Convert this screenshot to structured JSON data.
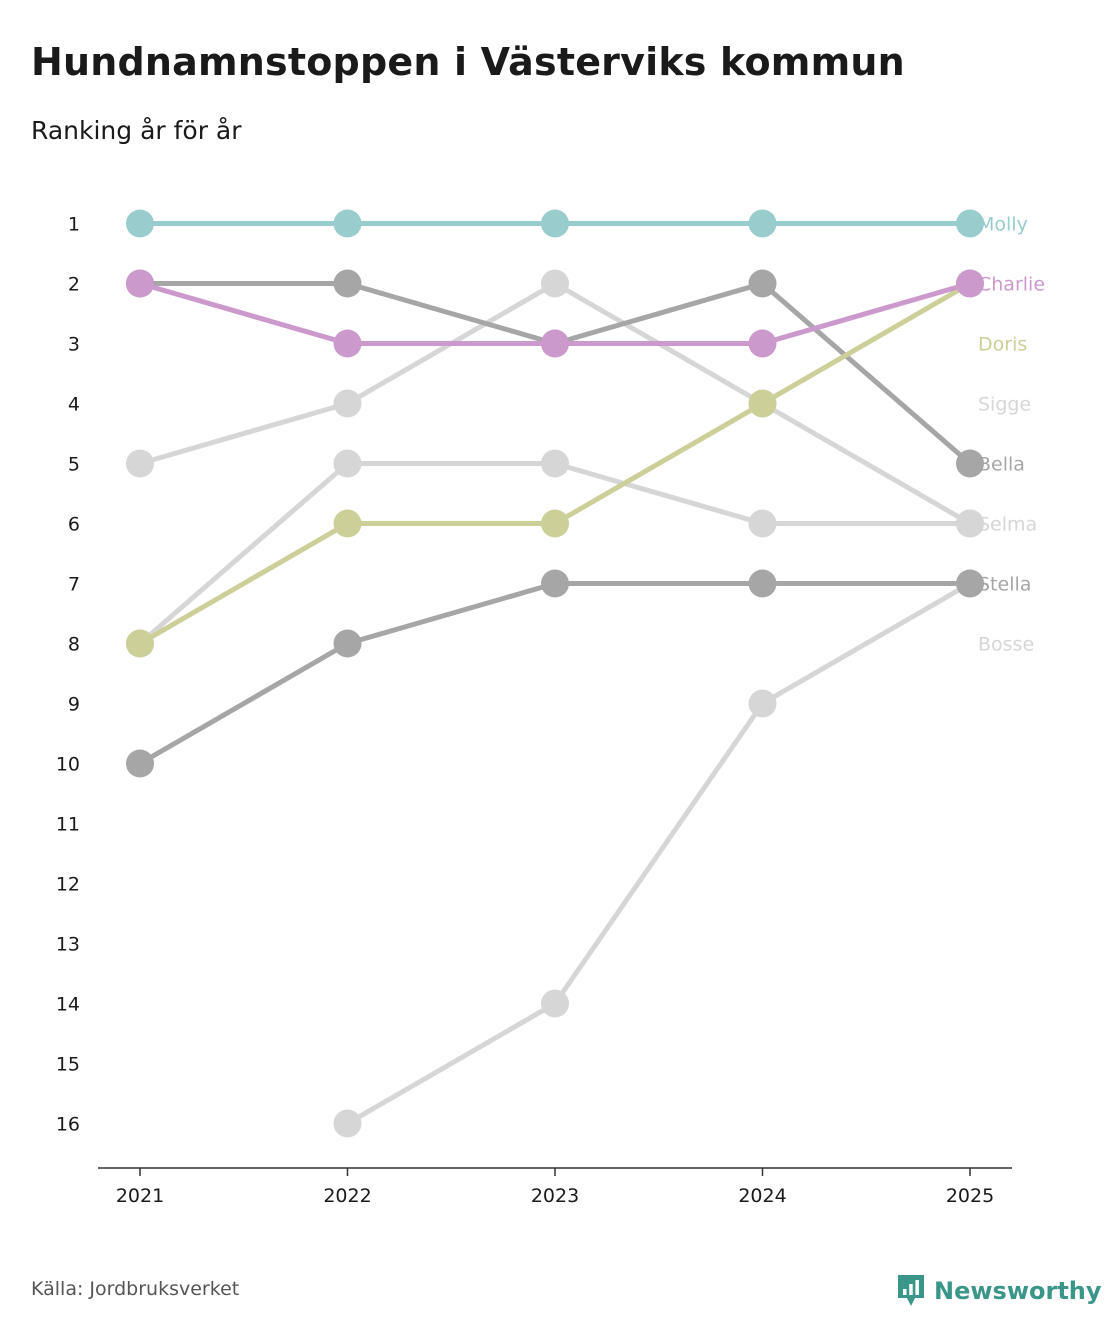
{
  "header": {
    "title": "Hundnamnstoppen i Västerviks kommun",
    "subtitle": "Ranking år för år"
  },
  "footer": {
    "source": "Källa: Jordbruksverket",
    "brand": "Newsworthy"
  },
  "colors": {
    "brand": "#3a9688",
    "axis": "#333333",
    "text": "#1a1a1a"
  },
  "chart_data": {
    "type": "line",
    "title": "Hundnamnstoppen i Västerviks kommun",
    "subtitle": "Ranking år för år",
    "xlabel": "",
    "ylabel": "",
    "x": [
      "2021",
      "2022",
      "2023",
      "2024",
      "2025"
    ],
    "y_ticks": [
      "1",
      "2",
      "3",
      "4",
      "5",
      "6",
      "7",
      "8",
      "9",
      "10",
      "11",
      "12",
      "13",
      "14",
      "15",
      "16"
    ],
    "ylim": [
      1,
      16
    ],
    "y_inverted": true,
    "grid": false,
    "legend": "end-labels",
    "series": [
      {
        "name": "Selma",
        "color": "#d6d6d6",
        "values": [
          5,
          4,
          2,
          4,
          6
        ]
      },
      {
        "name": "Bosse",
        "color": "#d6d6d6",
        "values": [
          8,
          5,
          5,
          6,
          6
        ]
      },
      {
        "name": "Sigge",
        "color": "#d6d6d6",
        "values": [
          null,
          16,
          14,
          9,
          7
        ]
      },
      {
        "name": "Stella",
        "color": "#a6a6a6",
        "values": [
          10,
          8,
          7,
          7,
          7
        ]
      },
      {
        "name": "Bella",
        "color": "#a6a6a6",
        "values": [
          2,
          2,
          3,
          2,
          5
        ]
      },
      {
        "name": "Doris",
        "color": "#cccf98",
        "values": [
          8,
          6,
          6,
          4,
          2
        ]
      },
      {
        "name": "Charlie",
        "color": "#cc99cc",
        "values": [
          2,
          3,
          3,
          3,
          2
        ]
      },
      {
        "name": "Molly",
        "color": "#99cccc",
        "values": [
          1,
          1,
          1,
          1,
          1
        ]
      }
    ],
    "end_labels": [
      {
        "name": "Molly",
        "color": "#99cccc",
        "rank": 1
      },
      {
        "name": "Charlie",
        "color": "#cc99cc",
        "rank": 2
      },
      {
        "name": "Doris",
        "color": "#cccf98",
        "rank": 3
      },
      {
        "name": "Sigge",
        "color": "#d6d6d6",
        "rank": 4
      },
      {
        "name": "Bella",
        "color": "#a6a6a6",
        "rank": 5
      },
      {
        "name": "Selma",
        "color": "#d6d6d6",
        "rank": 6
      },
      {
        "name": "Stella",
        "color": "#a6a6a6",
        "rank": 7
      },
      {
        "name": "Bosse",
        "color": "#d6d6d6",
        "rank": 8
      }
    ]
  }
}
